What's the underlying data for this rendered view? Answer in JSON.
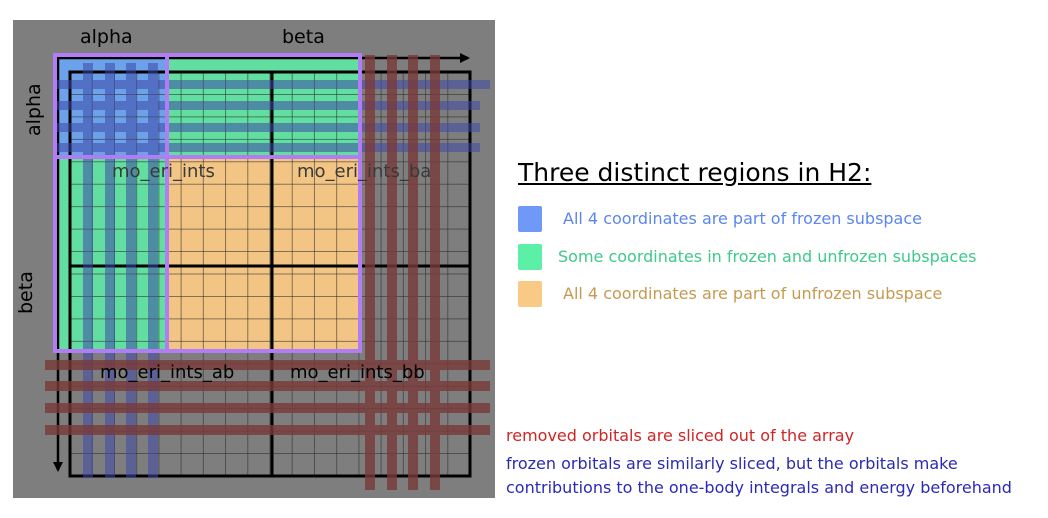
{
  "diagram": {
    "axis_top_left": "alpha",
    "axis_top_right": "beta",
    "axis_left_top": "alpha",
    "axis_left_bottom": "beta",
    "block_aa": "mo_eri_ints",
    "block_ba": "mo_eri_ints_ba",
    "block_ab": "mo_eri_ints_ab",
    "block_bb": "mo_eri_ints_bb"
  },
  "legend": {
    "title": "Three distinct regions in H2:",
    "items": [
      {
        "label": "All 4 coordinates are part of frozen subspace",
        "color": "#6f98f7",
        "text_color": "#5b86ee"
      },
      {
        "label": "Some coordinates in frozen and unfrozen subspaces",
        "color": "#5cefa6",
        "text_color": "#3ec98d"
      },
      {
        "label": "All 4 coordinates are part of unfrozen subspace",
        "color": "#f9c986",
        "text_color": "#c59a4f"
      }
    ]
  },
  "notes": {
    "removed": "removed orbitals are sliced out of the array",
    "frozen_line1": "frozen orbitals are similarly sliced, but the orbitals make",
    "frozen_line2": "contributions to the one-body integrals and energy beforehand"
  },
  "colors": {
    "panel_bg": "#7e7e7e",
    "removed": "#d22424",
    "frozen": "#2a2ab6",
    "frozen_region": "#6f98f7",
    "mixed_region": "#5cefa6",
    "unfrozen_region": "#f9c986",
    "outline": "#b27cf4",
    "removed_band": "#7a3a3a",
    "frozen_band": "#3f4aa6"
  }
}
